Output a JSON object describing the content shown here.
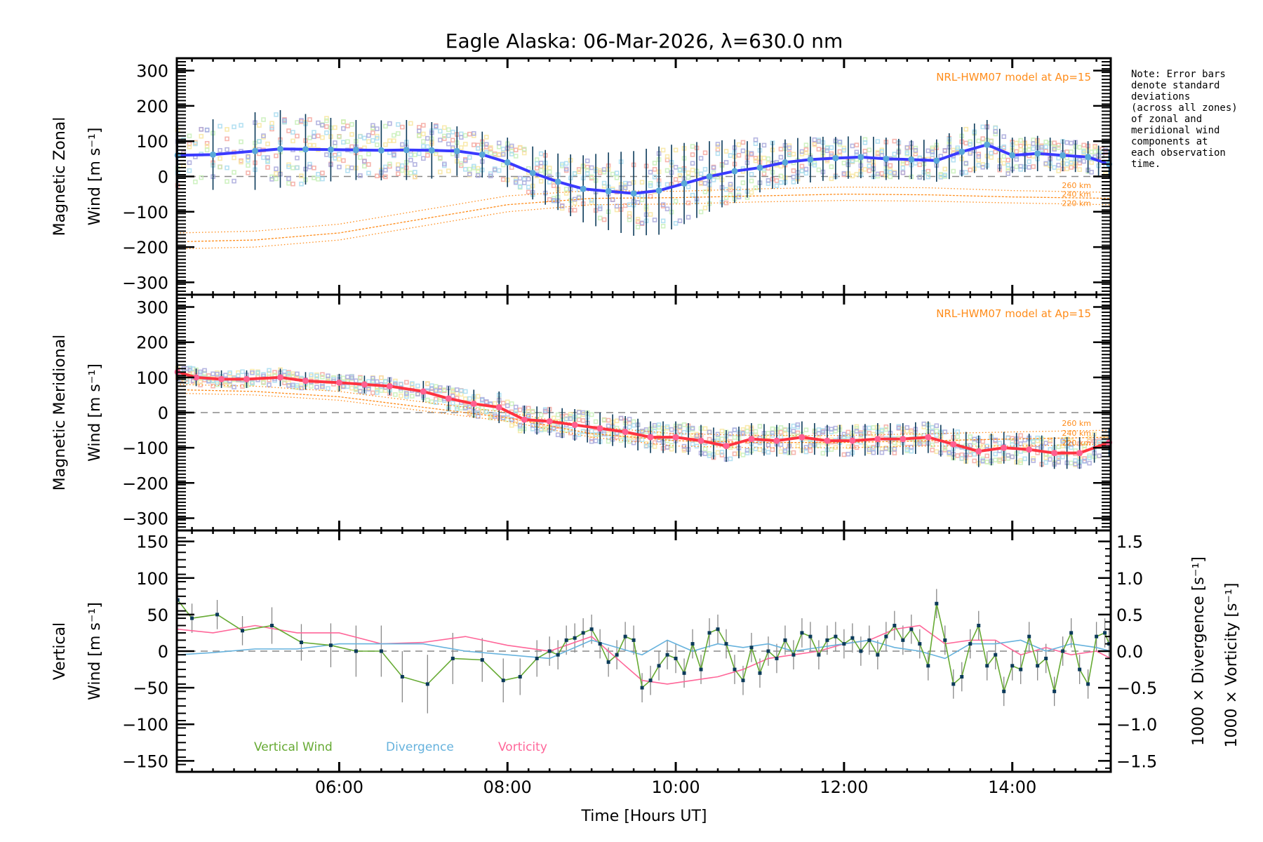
{
  "chart_data": {
    "type": "line",
    "title": "Eagle Alaska: 06-Mar-2026, λ=630.0 nm",
    "xlabel": "Time [Hours UT]",
    "xlim_hours": [
      4.07,
      15.17
    ],
    "x_tick_labels": [
      "06:00",
      "08:00",
      "10:00",
      "12:00",
      "14:00"
    ],
    "x_tick_hours": [
      6,
      8,
      10,
      12,
      14
    ],
    "note": [
      "Note: Error bars",
      "denote standard",
      "deviations",
      "(across all zones)",
      "of zonal and",
      "meridional wind",
      "components at",
      "each observation",
      "time."
    ],
    "colors": {
      "zonal": "#3a3aff",
      "zonal_marker": "#5aa8d8",
      "meridional": "#ff3340",
      "meridional_marker": "#ff6090",
      "errorbar": "#0b3a5a",
      "model": "#ff8c1a",
      "vertical": "#66aa33",
      "divergence": "#66b2dd",
      "vorticity": "#ff6699",
      "zone_scatter": [
        "#f4a8a0",
        "#f8e6a0",
        "#c8f0b8",
        "#a8dcf0",
        "#a8a8dc"
      ]
    },
    "panels": [
      {
        "id": "zonal",
        "ylabel_line1": "Magnetic Zonal",
        "ylabel_line2": "Wind [m s⁻¹]",
        "ylim": [
          -335,
          335
        ],
        "y_ticks": [
          300,
          200,
          100,
          0,
          -100,
          -200,
          -300
        ],
        "y_tick_labels": [
          "300",
          "200",
          "100",
          "0",
          "−100",
          "−200",
          "−300"
        ],
        "model_label": "NRL-HWM07 model at Ap=15",
        "model_altitudes": [
          "260 km",
          "240 km",
          "220 km"
        ],
        "series": {
          "hours": [
            4.08,
            4.5,
            5.0,
            5.3,
            5.6,
            5.9,
            6.2,
            6.5,
            6.8,
            7.1,
            7.4,
            7.7,
            8.0,
            8.3,
            8.6,
            8.9,
            9.2,
            9.5,
            9.8,
            10.1,
            10.4,
            10.7,
            11.0,
            11.3,
            11.6,
            11.9,
            12.2,
            12.5,
            12.8,
            13.1,
            13.4,
            13.7,
            14.0,
            14.3,
            14.6,
            14.9,
            15.15
          ],
          "values": [
            60,
            62,
            72,
            78,
            77,
            76,
            75,
            74,
            75,
            74,
            72,
            62,
            40,
            10,
            -15,
            -35,
            -42,
            -48,
            -40,
            -20,
            0,
            15,
            25,
            40,
            48,
            52,
            55,
            50,
            48,
            45,
            70,
            90,
            60,
            65,
            60,
            55,
            35
          ],
          "errors": [
            95,
            100,
            110,
            110,
            100,
            90,
            85,
            85,
            85,
            80,
            70,
            65,
            70,
            75,
            80,
            95,
            110,
            120,
            125,
            115,
            100,
            90,
            70,
            65,
            65,
            60,
            60,
            60,
            55,
            60,
            70,
            70,
            50,
            50,
            45,
            45,
            40
          ]
        },
        "model": [
          {
            "label": "260 km",
            "hours": [
              4.07,
              5,
              6,
              7,
              8,
              9,
              10,
              11,
              12,
              13,
              14,
              15.17
            ],
            "values": [
              -160,
              -155,
              -135,
              -95,
              -55,
              -40,
              -42,
              -35,
              -30,
              -32,
              -40,
              -45
            ]
          },
          {
            "label": "240 km",
            "hours": [
              4.07,
              5,
              6,
              7,
              8,
              9,
              10,
              11,
              12,
              13,
              14,
              15.17
            ],
            "values": [
              -185,
              -180,
              -160,
              -120,
              -80,
              -62,
              -60,
              -55,
              -50,
              -52,
              -58,
              -62
            ]
          },
          {
            "label": "220 km",
            "hours": [
              4.07,
              5,
              6,
              7,
              8,
              9,
              10,
              11,
              12,
              13,
              14,
              15.17
            ],
            "values": [
              -205,
              -200,
              -180,
              -140,
              -100,
              -80,
              -78,
              -72,
              -68,
              -70,
              -75,
              -80
            ]
          }
        ]
      },
      {
        "id": "meridional",
        "ylabel_line1": "Magnetic Meridional",
        "ylabel_line2": "Wind [m s⁻¹]",
        "ylim": [
          -335,
          335
        ],
        "y_ticks": [
          300,
          200,
          100,
          0,
          -100,
          -200,
          -300
        ],
        "y_tick_labels": [
          "300",
          "200",
          "100",
          "0",
          "−100",
          "−200",
          "−300"
        ],
        "model_label": "NRL-HWM07 model at Ap=15",
        "model_altitudes": [
          "260 km",
          "240 km",
          "220 km"
        ],
        "series": {
          "hours": [
            4.08,
            4.3,
            4.6,
            4.9,
            5.3,
            5.6,
            6.0,
            6.3,
            6.6,
            7.0,
            7.3,
            7.6,
            7.9,
            8.2,
            8.5,
            8.8,
            9.1,
            9.4,
            9.7,
            10.0,
            10.3,
            10.6,
            10.9,
            11.2,
            11.5,
            11.8,
            12.1,
            12.4,
            12.7,
            13.0,
            13.3,
            13.6,
            13.9,
            14.2,
            14.5,
            14.8,
            15.15
          ],
          "values": [
            115,
            100,
            95,
            95,
            100,
            90,
            85,
            80,
            75,
            60,
            40,
            25,
            15,
            -20,
            -25,
            -35,
            -45,
            -55,
            -70,
            -70,
            -80,
            -95,
            -75,
            -80,
            -70,
            -80,
            -80,
            -75,
            -75,
            -70,
            -90,
            -110,
            -100,
            -105,
            -115,
            -115,
            -85
          ],
          "errors": [
            25,
            25,
            25,
            25,
            25,
            25,
            25,
            25,
            25,
            30,
            35,
            40,
            45,
            40,
            40,
            45,
            45,
            45,
            45,
            45,
            45,
            45,
            45,
            45,
            45,
            45,
            45,
            45,
            45,
            45,
            45,
            45,
            45,
            45,
            45,
            45,
            40
          ]
        },
        "model": [
          {
            "label": "260 km",
            "hours": [
              4.07,
              5,
              6,
              7,
              8,
              9,
              10,
              11,
              12,
              13,
              14,
              15.17
            ],
            "values": [
              80,
              75,
              60,
              30,
              0,
              -40,
              -60,
              -65,
              -65,
              -60,
              -55,
              -50
            ]
          },
          {
            "label": "240 km",
            "hours": [
              4.07,
              5,
              6,
              7,
              8,
              9,
              10,
              11,
              12,
              13,
              14,
              15.17
            ],
            "values": [
              65,
              60,
              45,
              15,
              -15,
              -60,
              -80,
              -85,
              -85,
              -80,
              -75,
              -70
            ]
          },
          {
            "label": "220 km",
            "hours": [
              4.07,
              5,
              6,
              7,
              8,
              9,
              10,
              11,
              12,
              13,
              14,
              15.17
            ],
            "values": [
              55,
              50,
              35,
              5,
              -25,
              -70,
              -95,
              -100,
              -100,
              -95,
              -95,
              -90
            ]
          }
        ]
      },
      {
        "id": "vertical",
        "ylabel_line1": "Vertical",
        "ylabel_line2": "Wind [m s⁻¹]",
        "ylim": [
          -165,
          165
        ],
        "y_ticks": [
          150,
          100,
          50,
          0,
          -50,
          -100,
          -150
        ],
        "y_tick_labels": [
          "150",
          "100",
          "50",
          "0",
          "−50",
          "−100",
          "−150"
        ],
        "right_ylim": [
          -1.65,
          1.65
        ],
        "right_y_ticks": [
          1.5,
          1.0,
          0.5,
          0.0,
          -0.5,
          -1.0,
          -1.5
        ],
        "right_y_tick_labels": [
          "1.5",
          "1.0",
          "0.5",
          "0.0",
          "−0.5",
          "−1.0",
          "−1.5"
        ],
        "right_ylabel_divergence": "1000 × Divergence [s⁻¹]",
        "right_ylabel_vorticity": "1000 × Vorticity [s⁻¹]",
        "legend": [
          "Vertical Wind",
          "Divergence",
          "Vorticity"
        ],
        "vertical_wind": {
          "hours": [
            4.08,
            4.25,
            4.55,
            4.85,
            5.2,
            5.55,
            5.9,
            6.2,
            6.5,
            6.75,
            7.05,
            7.35,
            7.7,
            7.95,
            8.15,
            8.35,
            8.5,
            8.6,
            8.7,
            8.8,
            8.9,
            9.0,
            9.1,
            9.2,
            9.3,
            9.4,
            9.5,
            9.6,
            9.7,
            9.8,
            9.9,
            10.0,
            10.1,
            10.2,
            10.3,
            10.4,
            10.5,
            10.6,
            10.7,
            10.8,
            10.9,
            11.0,
            11.1,
            11.2,
            11.3,
            11.4,
            11.5,
            11.6,
            11.7,
            11.8,
            11.9,
            12.0,
            12.1,
            12.2,
            12.3,
            12.4,
            12.5,
            12.6,
            12.7,
            12.8,
            12.9,
            13.0,
            13.1,
            13.2,
            13.3,
            13.4,
            13.5,
            13.6,
            13.7,
            13.8,
            13.9,
            14.0,
            14.1,
            14.2,
            14.3,
            14.4,
            14.5,
            14.6,
            14.7,
            14.8,
            14.9,
            15.0,
            15.1,
            15.15
          ],
          "values": [
            70,
            45,
            50,
            28,
            35,
            12,
            8,
            0,
            0,
            -35,
            -45,
            -10,
            -12,
            -40,
            -35,
            -10,
            0,
            -5,
            15,
            18,
            25,
            30,
            10,
            -15,
            -5,
            20,
            15,
            -50,
            -40,
            -20,
            -5,
            -10,
            -30,
            10,
            -25,
            25,
            30,
            10,
            -25,
            -40,
            5,
            -30,
            0,
            -10,
            15,
            -5,
            25,
            20,
            -5,
            15,
            20,
            10,
            18,
            0,
            15,
            -5,
            20,
            35,
            15,
            30,
            10,
            -20,
            65,
            15,
            -45,
            -35,
            10,
            35,
            -20,
            -5,
            -55,
            -20,
            -25,
            20,
            -20,
            -10,
            -55,
            0,
            25,
            -25,
            -45,
            20,
            25,
            10
          ],
          "errors": [
            20,
            20,
            20,
            20,
            25,
            25,
            30,
            35,
            35,
            35,
            40,
            35,
            30,
            30,
            25,
            25,
            20,
            20,
            20,
            20,
            20,
            20,
            20,
            20,
            20,
            20,
            20,
            20,
            20,
            20,
            20,
            20,
            20,
            20,
            20,
            20,
            20,
            20,
            20,
            20,
            20,
            20,
            20,
            20,
            20,
            20,
            20,
            20,
            20,
            20,
            20,
            20,
            20,
            20,
            20,
            20,
            20,
            20,
            20,
            20,
            20,
            20,
            20,
            20,
            20,
            20,
            20,
            20,
            20,
            20,
            20,
            20,
            20,
            20,
            20,
            20,
            20,
            20,
            20,
            20,
            20,
            20,
            20,
            20
          ]
        },
        "divergence": {
          "hours": [
            4.08,
            4.5,
            5.0,
            5.5,
            6.0,
            6.5,
            7.0,
            7.5,
            8.0,
            8.5,
            9.0,
            9.3,
            9.6,
            9.9,
            10.2,
            10.5,
            10.8,
            11.1,
            11.4,
            11.7,
            12.0,
            12.3,
            12.6,
            12.9,
            13.2,
            13.5,
            13.8,
            14.1,
            14.4,
            14.7,
            15.0,
            15.17
          ],
          "values": [
            -0.05,
            -0.02,
            0.03,
            0.03,
            0.1,
            0.1,
            0.1,
            0.0,
            -0.05,
            -0.1,
            0.15,
            0.05,
            -0.05,
            0.15,
            0.0,
            0.1,
            0.05,
            0.1,
            0.0,
            0.05,
            0.1,
            0.15,
            0.05,
            0.0,
            -0.1,
            0.1,
            0.1,
            0.15,
            0.0,
            0.1,
            0.05,
            0.0
          ]
        },
        "vorticity": {
          "hours": [
            4.08,
            4.5,
            5.0,
            5.5,
            6.0,
            6.5,
            7.0,
            7.5,
            8.0,
            8.5,
            9.0,
            9.3,
            9.6,
            9.9,
            10.2,
            10.5,
            10.8,
            11.1,
            11.4,
            11.7,
            12.0,
            12.3,
            12.6,
            12.9,
            13.2,
            13.5,
            13.8,
            14.1,
            14.4,
            14.7,
            15.0,
            15.17
          ],
          "values": [
            0.3,
            0.25,
            0.35,
            0.25,
            0.25,
            0.1,
            0.12,
            0.2,
            0.08,
            0.0,
            0.2,
            -0.1,
            -0.4,
            -0.45,
            -0.4,
            -0.35,
            -0.25,
            -0.1,
            -0.05,
            0.0,
            0.1,
            0.15,
            0.3,
            0.35,
            0.1,
            0.15,
            0.15,
            -0.05,
            0.05,
            -0.05,
            0.0,
            -0.1
          ]
        }
      }
    ]
  }
}
